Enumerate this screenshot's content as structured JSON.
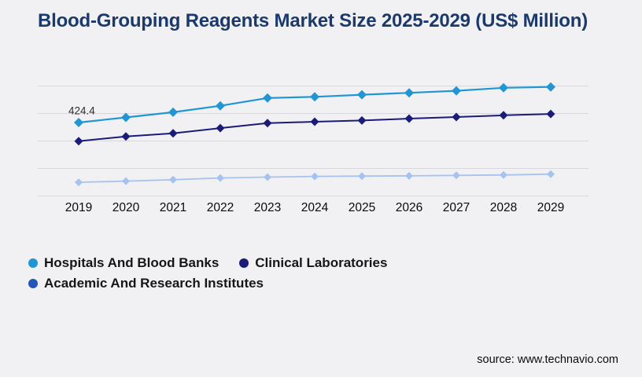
{
  "title": "Blood-Grouping Reagents Market Size 2025-2029 (US$ Million)",
  "source_text": "source: www.technavio.com",
  "colors": {
    "background": "#f1f1f4",
    "title_text": "#1b3a6b",
    "gridline": "#d7d7dc",
    "axis_label_text": "#0a0a0a",
    "data_label_text": "#2e2e2e"
  },
  "chart_data": {
    "type": "line",
    "title": "Blood-Grouping Reagents Market Size 2025-2029 (US$ Million)",
    "xlabel": "",
    "ylabel": "",
    "unit": "US$ Million",
    "categories": [
      "2019",
      "2020",
      "2021",
      "2022",
      "2023",
      "2024",
      "2025",
      "2026",
      "2027",
      "2028",
      "2029"
    ],
    "ylim": [
      0,
      635
    ],
    "grid": true,
    "gridline_count": 5,
    "y_axis_tick_labels_shown": false,
    "legend_position": "bottom-left",
    "marker_shape": "diamond",
    "series": [
      {
        "name": "Hospitals And Blood Banks",
        "color": "#2196d3",
        "legend_color": "#2196d3",
        "values": [
          424.4,
          454,
          484,
          521,
          566,
          573,
          585,
          596,
          608,
          625,
          630
        ]
      },
      {
        "name": "Clinical Laboratories",
        "color": "#1b1b78",
        "legend_color": "#1b1b78",
        "values": [
          317,
          344,
          362,
          392,
          421,
          429,
          436,
          447,
          456,
          466,
          474
        ]
      },
      {
        "name": "Academic And Research Institutes",
        "color": "#a6c3ef",
        "legend_color": "#2456b4",
        "values": [
          79,
          86,
          94,
          104,
          109,
          113,
          115,
          116,
          119,
          121,
          126
        ]
      }
    ],
    "data_labels": [
      {
        "series": "Hospitals And Blood Banks",
        "category": "2019",
        "text": "424.4"
      }
    ]
  }
}
